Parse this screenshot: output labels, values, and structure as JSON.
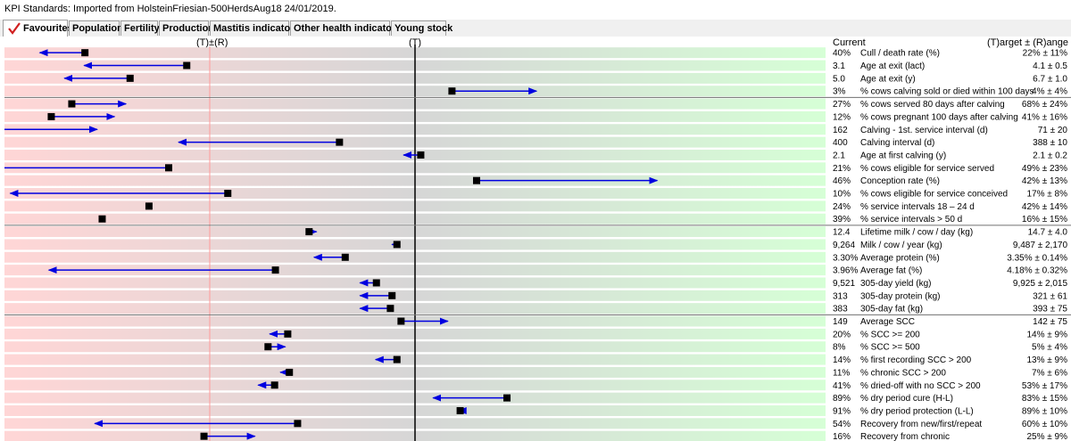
{
  "window_title": "KPI Standards: Imported from HolsteinFriesian-500HerdsAug18 24/01/2019.",
  "tabs": [
    {
      "label": "Favourites",
      "active": true
    },
    {
      "label": "Population",
      "active": false
    },
    {
      "label": "Fertility",
      "active": false
    },
    {
      "label": "Production",
      "active": false
    },
    {
      "label": "Mastitis indicators",
      "active": false
    },
    {
      "label": "Other health indicators",
      "active": false
    },
    {
      "label": "Young stock",
      "active": false
    }
  ],
  "header": {
    "left_marker": "(T)±(R)",
    "center_marker": "(T)",
    "current_label": "Current",
    "target_label": "(T)arget ± (R)ange"
  },
  "colors": {
    "bad_zone": "#ffd6d6",
    "neutral_zone": "#d6d6d6",
    "good_zone": "#d6ffd6",
    "arrow": "#0000e0",
    "marker": "#000000",
    "range_line": "#ff9a9a",
    "target_line": "#000000"
  },
  "chart_data": {
    "type": "kpi-range-indicator",
    "groups_after_rows": [
      4,
      14,
      21
    ],
    "rows": [
      {
        "current": "40%",
        "label": "Cull / death rate (%)",
        "target": "22% ± 11%",
        "marker": 0.098,
        "arrow_to": 0.043
      },
      {
        "current": "3.1",
        "label": "Age at exit (lact)",
        "target": "4.1 ± 0.5",
        "marker": 0.222,
        "arrow_to": 0.097
      },
      {
        "current": "5.0",
        "label": "Age at exit (y)",
        "target": "6.7 ± 1.0",
        "marker": 0.153,
        "arrow_to": 0.073
      },
      {
        "current": "3%",
        "label": "% cows calving sold or died within 100 days",
        "target": "4% ± 4%",
        "marker": 0.545,
        "arrow_to": 0.648
      },
      {
        "current": "27%",
        "label": "% cows served 80 days after calving",
        "target": "68% ± 24%",
        "marker": 0.082,
        "arrow_to": 0.148
      },
      {
        "current": "12%",
        "label": "% cows pregnant 100 days after calving",
        "target": "41% ± 16%",
        "marker": 0.057,
        "arrow_to": 0.134
      },
      {
        "current": "162",
        "label": "Calving - 1st. service interval (d)",
        "target": "71 ± 20",
        "marker": null,
        "arrow_to": 0.113
      },
      {
        "current": "400",
        "label": "Calving interval (d)",
        "target": "388 ± 10",
        "marker": 0.408,
        "arrow_to": 0.212
      },
      {
        "current": "2.1",
        "label": "Age at first calving (y)",
        "target": "2.1 ± 0.2",
        "marker": 0.507,
        "arrow_to": 0.486
      },
      {
        "current": "21%",
        "label": "% cows eligible for service served",
        "target": "49% ± 23%",
        "marker": 0.2,
        "arrow_to": null
      },
      {
        "current": "46%",
        "label": "Conception rate (%)",
        "target": "42% ± 13%",
        "marker": 0.575,
        "arrow_to": 0.795
      },
      {
        "current": "10%",
        "label": "% cows eligible for service conceived",
        "target": "17% ± 8%",
        "marker": 0.272,
        "arrow_to": 0.007
      },
      {
        "current": "24%",
        "label": "% service intervals 18 – 24 d",
        "target": "42% ± 14%",
        "marker": 0.176,
        "arrow_to": null
      },
      {
        "current": "39%",
        "label": "% service intervals > 50 d",
        "target": "16% ± 15%",
        "marker": 0.119,
        "arrow_to": null
      },
      {
        "current": "12.4",
        "label": "Lifetime milk / cow / day (kg)",
        "target": "14.7 ± 4.0",
        "marker": 0.371,
        "arrow_to": 0.38
      },
      {
        "current": "9,264",
        "label": "Milk / cow / year (kg)",
        "target": "9,487 ± 2,170",
        "marker": 0.478,
        "arrow_to": 0.472
      },
      {
        "current": "3.30%",
        "label": "Average protein (%)",
        "target": "3.35% ± 0.14%",
        "marker": 0.415,
        "arrow_to": 0.377
      },
      {
        "current": "3.96%",
        "label": "Average fat (%)",
        "target": "4.18% ± 0.32%",
        "marker": 0.33,
        "arrow_to": 0.054
      },
      {
        "current": "9,521",
        "label": "305-day yield (kg)",
        "target": "9,925 ± 2,015",
        "marker": 0.453,
        "arrow_to": 0.433
      },
      {
        "current": "313",
        "label": "305-day protein (kg)",
        "target": "321 ± 61",
        "marker": 0.472,
        "arrow_to": 0.433
      },
      {
        "current": "383",
        "label": "305-day fat (kg)",
        "target": "393 ± 75",
        "marker": 0.47,
        "arrow_to": 0.433
      },
      {
        "current": "149",
        "label": "Average SCC",
        "target": "142 ± 75",
        "marker": 0.483,
        "arrow_to": 0.54
      },
      {
        "current": "20%",
        "label": "% SCC >= 200",
        "target": "14% ± 9%",
        "marker": 0.345,
        "arrow_to": 0.323
      },
      {
        "current": "8%",
        "label": "% SCC >= 500",
        "target": "5% ± 4%",
        "marker": 0.321,
        "arrow_to": 0.342
      },
      {
        "current": "14%",
        "label": "% first recording SCC > 200",
        "target": "13% ± 9%",
        "marker": 0.478,
        "arrow_to": 0.452
      },
      {
        "current": "11%",
        "label": "% chronic SCC > 200",
        "target": "7% ± 6%",
        "marker": 0.347,
        "arrow_to": 0.336
      },
      {
        "current": "41%",
        "label": "% dried-off with no SCC > 200",
        "target": "53% ± 17%",
        "marker": 0.329,
        "arrow_to": 0.309
      },
      {
        "current": "89%",
        "label": "% dry period cure (H-L)",
        "target": "83% ± 15%",
        "marker": 0.612,
        "arrow_to": 0.522
      },
      {
        "current": "91%",
        "label": "% dry period protection (L-L)",
        "target": "89% ± 10%",
        "marker": 0.555,
        "arrow_to": 0.553
      },
      {
        "current": "54%",
        "label": "Recovery from new/first/repeat",
        "target": "60% ± 10%",
        "marker": 0.357,
        "arrow_to": 0.11
      },
      {
        "current": "16%",
        "label": "Recovery from chronic",
        "target": "25% ± 9%",
        "marker": 0.243,
        "arrow_to": 0.305
      }
    ]
  }
}
